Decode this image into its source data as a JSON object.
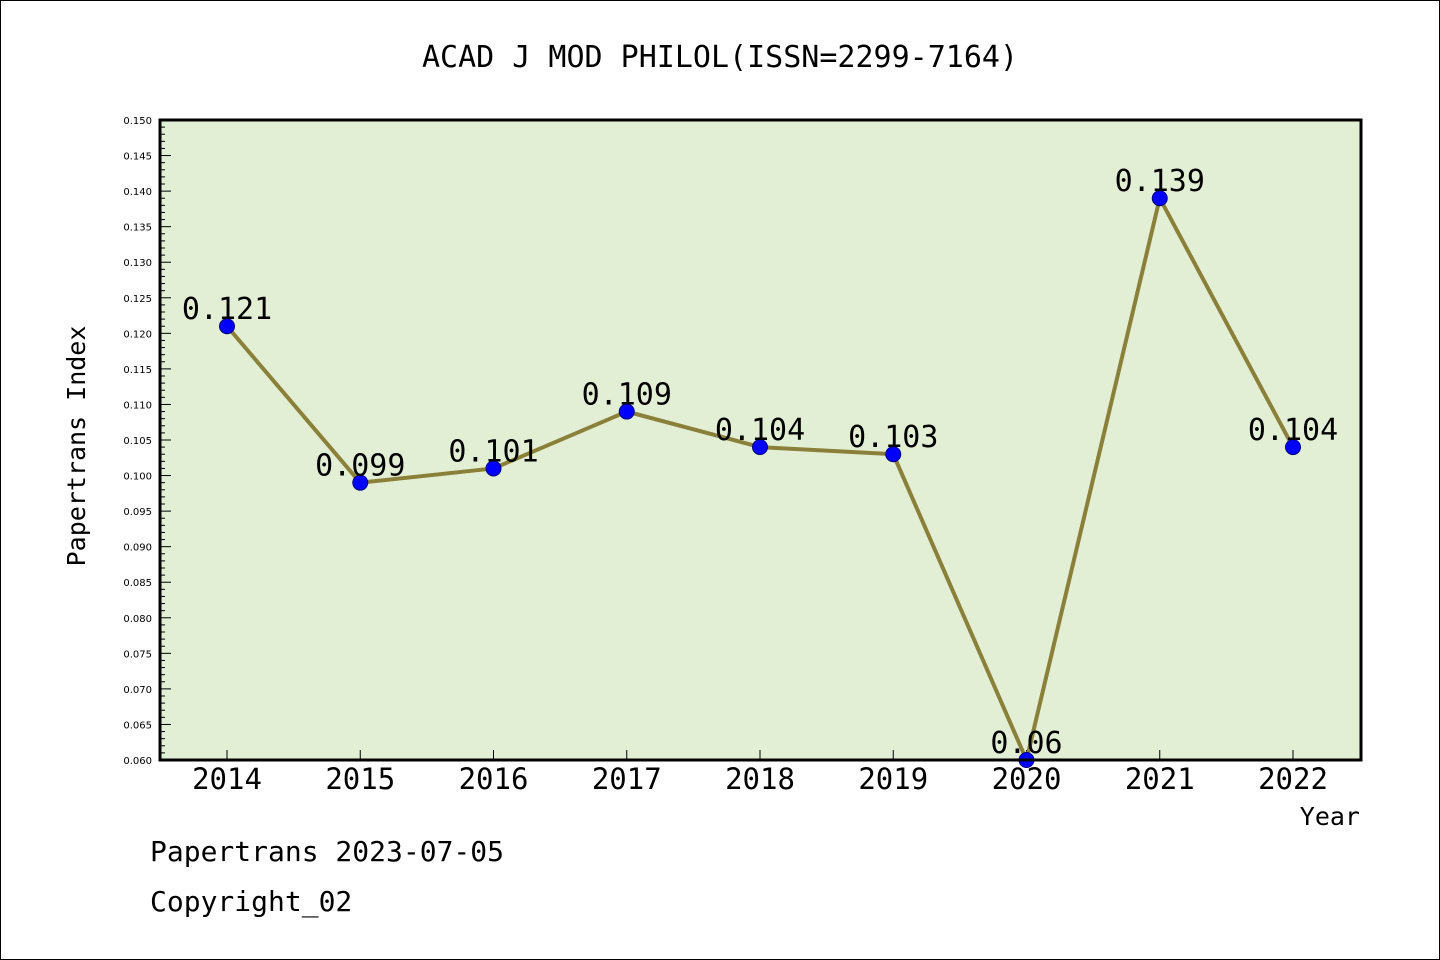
{
  "chart_data": {
    "type": "line",
    "title": "ACAD J MOD PHILOL(ISSN=2299-7164)",
    "xlabel": "Year",
    "ylabel": "Papertrans Index",
    "categories": [
      "2014",
      "2015",
      "2016",
      "2017",
      "2018",
      "2019",
      "2020",
      "2021",
      "2022"
    ],
    "values": [
      0.121,
      0.099,
      0.101,
      0.109,
      0.104,
      0.103,
      0.06,
      0.139,
      0.104
    ],
    "value_labels": [
      "0.121",
      "0.099",
      "0.101",
      "0.109",
      "0.104",
      "0.103",
      "0.06",
      "0.139",
      "0.104"
    ],
    "ylim": [
      0.06,
      0.15
    ],
    "yticks": [
      "0.060",
      "0.065",
      "0.070",
      "0.075",
      "0.080",
      "0.085",
      "0.090",
      "0.095",
      "0.100",
      "0.105",
      "0.110",
      "0.115",
      "0.120",
      "0.125",
      "0.130",
      "0.135",
      "0.140",
      "0.145",
      "0.150"
    ],
    "grid": false,
    "colors": {
      "plot_background": "#e2efd5",
      "line": "#8b803a",
      "marker": "#0000ff",
      "axes": "#000000"
    }
  },
  "footer": {
    "source": "Papertrans 2023-07-05",
    "copyright": "Copyright_02"
  }
}
